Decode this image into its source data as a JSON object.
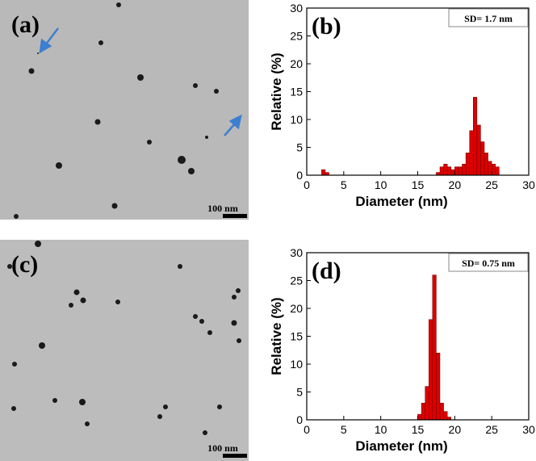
{
  "images": [
    {
      "label": "(a)",
      "scale_bar": "100 nm"
    },
    {
      "label": "(c)",
      "scale_bar": "100 nm"
    }
  ],
  "chart_data": [
    {
      "type": "histogram",
      "panel_label": "(b)",
      "annotation": "SD= 1.7 nm",
      "x_label": "Diameter (nm)",
      "y_label": "Relative (%)",
      "bins": [
        2.0,
        2.5,
        3.0,
        3.5,
        4.0,
        4.5,
        5.0,
        5.5,
        6.0,
        6.5,
        7.0,
        7.5,
        8.0,
        8.5,
        9.0,
        9.5,
        10.0,
        10.5,
        11.0,
        11.5,
        12.0,
        12.5,
        13.0,
        13.5,
        14.0,
        14.5,
        15.0,
        15.5,
        16.0,
        16.5,
        17.0,
        17.5,
        18.0,
        18.5,
        19.0,
        19.5,
        20.0,
        20.5,
        21.0,
        21.5,
        22.0,
        22.5,
        23.0,
        23.5,
        24.0,
        24.5,
        25.0,
        25.5,
        26.0
      ],
      "counts": [
        1,
        0.5,
        0,
        0,
        0,
        0,
        0,
        0,
        0,
        0,
        0,
        0,
        0,
        0,
        0,
        0,
        0,
        0,
        0,
        0,
        0,
        0,
        0,
        0,
        0,
        0,
        0,
        0,
        0,
        0,
        0,
        0.5,
        1.5,
        2,
        1.5,
        1,
        1.5,
        1.5,
        2,
        4,
        8,
        14,
        9,
        6,
        4,
        2.5,
        2,
        1.5
      ],
      "color": "#dd0000",
      "xlim": [
        0,
        30
      ],
      "ylim": [
        0,
        30
      ],
      "xticks": [
        0,
        5,
        10,
        15,
        20,
        25,
        30
      ],
      "yticks": [
        0,
        5,
        10,
        15,
        20,
        25,
        30
      ]
    },
    {
      "type": "histogram",
      "panel_label": "(d)",
      "annotation": "SD= 0.75 nm",
      "x_label": "Diameter (nm)",
      "y_label": "Relative (%)",
      "bins": [
        15.0,
        15.5,
        16.0,
        16.5,
        17.0,
        17.5,
        18.0,
        18.5,
        19.0,
        19.5
      ],
      "counts": [
        1,
        3,
        6,
        18,
        26,
        12,
        3,
        1.5,
        0.5
      ],
      "color": "#dd0000",
      "xlim": [
        0,
        30
      ],
      "ylim": [
        0,
        30
      ],
      "xticks": [
        0,
        5,
        10,
        15,
        20,
        25,
        30
      ],
      "yticks": [
        0,
        5,
        10,
        15,
        20,
        25,
        30
      ]
    }
  ]
}
